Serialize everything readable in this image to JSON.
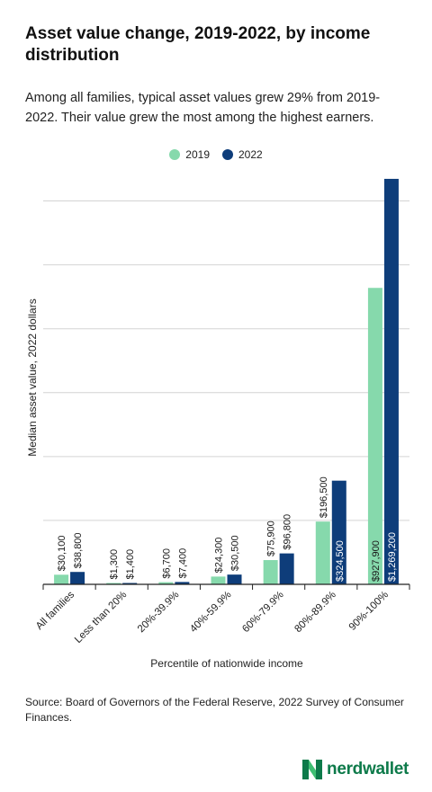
{
  "header": {
    "title": "Asset value change, 2019-2022, by income distribution",
    "subtitle": "Among all families, typical asset values grew 29% from 2019-2022. Their value grew the most among the highest earners."
  },
  "footer": {
    "source": "Source: Board of Governors of the Federal Reserve, 2022 Survey of Consumer Finances.",
    "brand": "nerdwallet"
  },
  "colors": {
    "series_2019": "#86d9ac",
    "series_2022": "#0e3d7a",
    "brand_green": "#0d7a4a",
    "grid": "#d4d4d4",
    "axis": "#222222"
  },
  "chart_data": {
    "type": "bar",
    "title": "Asset value change, 2019-2022, by income distribution",
    "xlabel": "Percentile of nationwide income",
    "ylabel": "Median asset value, 2022 dollars",
    "categories": [
      "All families",
      "Less than 20%",
      "20%-39.9%",
      "40%-59.9%",
      "60%-79.9%",
      "80%-89.9%",
      "90%-100%"
    ],
    "series": [
      {
        "name": "2019",
        "values": [
          30100,
          1300,
          6700,
          24300,
          75900,
          196500,
          927900
        ],
        "labels": [
          "$30,100",
          "$1,300",
          "$6,700",
          "$24,300",
          "$75,900",
          "$196,500",
          "$927,900"
        ]
      },
      {
        "name": "2022",
        "values": [
          38800,
          1400,
          7400,
          30500,
          96800,
          324500,
          1269200
        ],
        "labels": [
          "$38,800",
          "$1,400",
          "$7,400",
          "$30,500",
          "$96,800",
          "$324,500",
          "$1,269,200"
        ]
      }
    ],
    "ylim": [
      0,
      1300000
    ],
    "gridlines": [
      200000,
      400000,
      600000,
      800000,
      1000000,
      1200000
    ],
    "grid": true,
    "legend_position": "top-center"
  }
}
